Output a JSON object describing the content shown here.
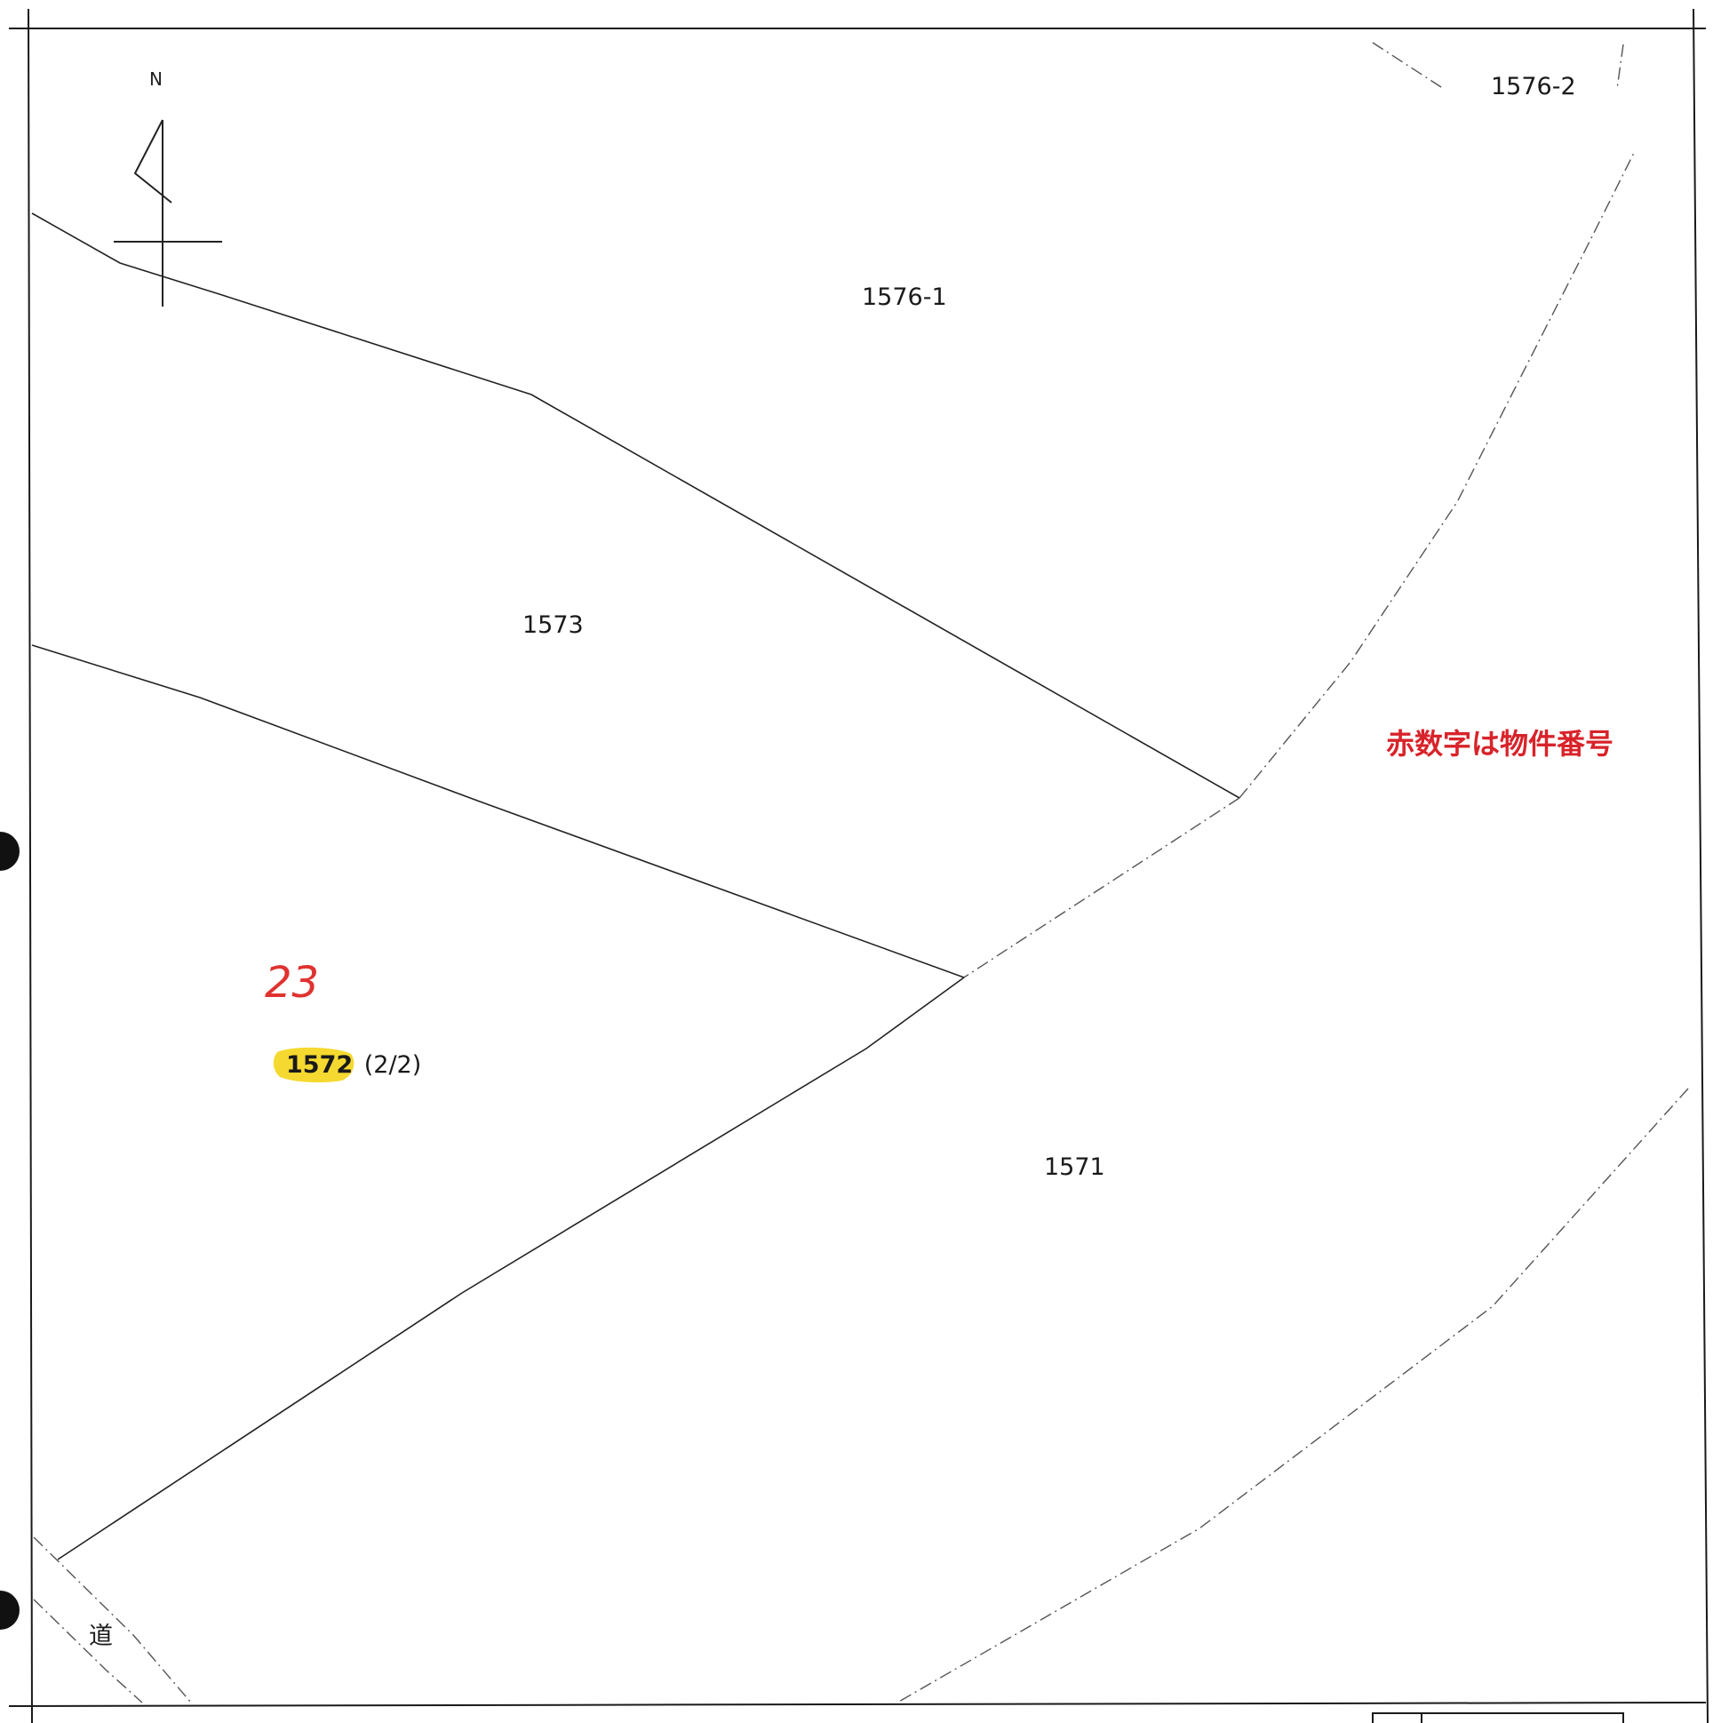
{
  "map": {
    "north_indicator": "N",
    "parcels": [
      {
        "id": "parcel-1576-2",
        "label": "1576-2"
      },
      {
        "id": "parcel-1576-1",
        "label": "1576-1"
      },
      {
        "id": "parcel-1573",
        "label": "1573"
      },
      {
        "id": "parcel-1571",
        "label": "1571"
      }
    ],
    "highlighted_parcel": {
      "label": "1572",
      "suffix": "(2/2)",
      "highlight_color": "#f5d51a"
    },
    "property_number": "23",
    "legend_note": "赤数字は物件番号",
    "road_label": "道",
    "colors": {
      "legend_text": "#d8232a",
      "property_number": "#e0322f",
      "lines": "#222222"
    }
  }
}
